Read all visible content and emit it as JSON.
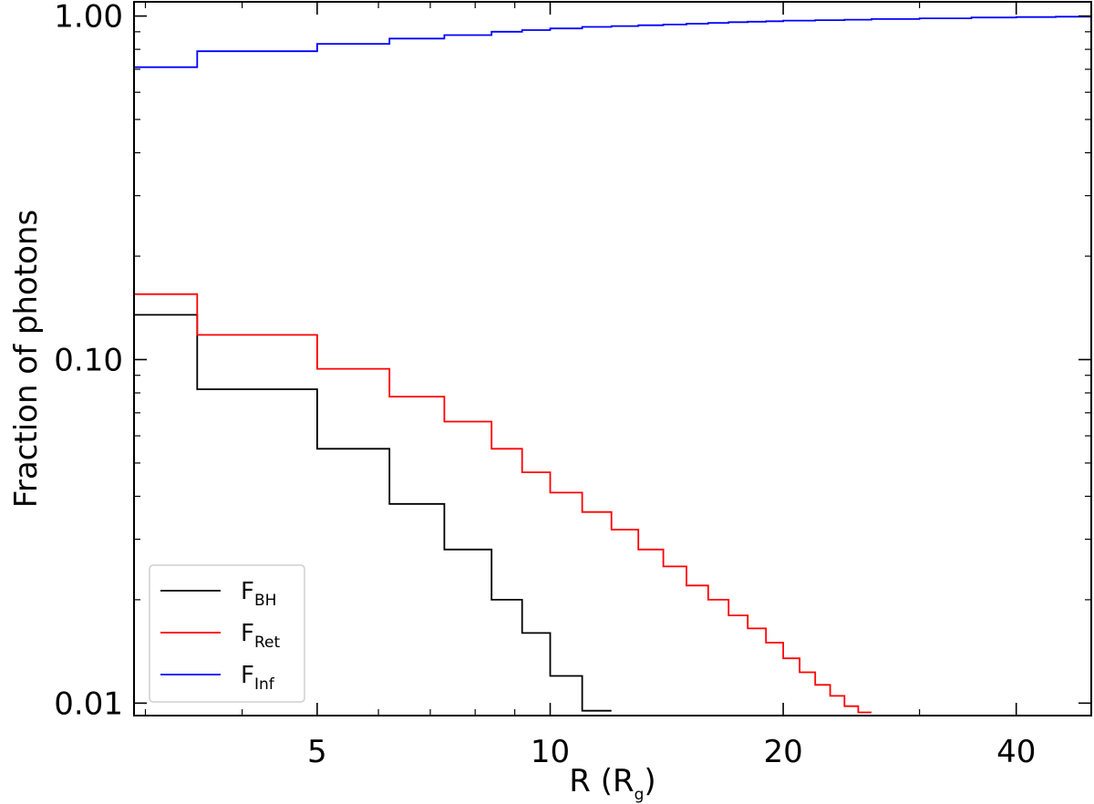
{
  "chart_data": {
    "type": "line",
    "step": true,
    "title": "",
    "xlabel": "R (R",
    "xlabel_sub": "g",
    "xlabel_close": ")",
    "ylabel": "Fraction of photons",
    "xscale": "log",
    "yscale": "log",
    "xlim": [
      2.9,
      50
    ],
    "ylim": [
      0.0092,
      1.1
    ],
    "grid": false,
    "legend_position": "lower-left",
    "x_ticks": [
      {
        "value": 5,
        "label": "5"
      },
      {
        "value": 10,
        "label": "10"
      },
      {
        "value": 20,
        "label": "20"
      },
      {
        "value": 40,
        "label": "40"
      }
    ],
    "y_ticks": [
      {
        "value": 0.01,
        "label": "0.01"
      },
      {
        "value": 0.1,
        "label": "0.10"
      },
      {
        "value": 1.0,
        "label": "1.00"
      }
    ],
    "series": [
      {
        "name": "F",
        "name_sub": "BH",
        "color": "#000000",
        "edges": [
          2.9,
          3.5,
          5.0,
          6.2,
          7.3,
          8.4,
          9.2,
          10.0,
          11.0,
          12.0
        ],
        "values": [
          0.135,
          0.082,
          0.055,
          0.038,
          0.028,
          0.02,
          0.016,
          0.012,
          0.0095
        ]
      },
      {
        "name": "F",
        "name_sub": "Ret",
        "color": "#ff0000",
        "edges": [
          2.9,
          3.5,
          5.0,
          6.2,
          7.3,
          8.4,
          9.2,
          10.0,
          11.0,
          12.0,
          13.0,
          14.0,
          15.0,
          16.0,
          17.0,
          18.0,
          19.0,
          20.0,
          21.0,
          22.0,
          23.0,
          24.0,
          25.0,
          26.0
        ],
        "values": [
          0.155,
          0.118,
          0.094,
          0.078,
          0.066,
          0.055,
          0.047,
          0.041,
          0.036,
          0.032,
          0.028,
          0.025,
          0.022,
          0.02,
          0.018,
          0.0165,
          0.015,
          0.0135,
          0.0123,
          0.0113,
          0.0105,
          0.0098,
          0.0094
        ]
      },
      {
        "name": "F",
        "name_sub": "Inf",
        "color": "#0000ff",
        "edges": [
          2.9,
          3.5,
          5.0,
          6.2,
          7.3,
          8.4,
          9.2,
          10.0,
          11.0,
          12.0,
          13.0,
          14.0,
          15.0,
          16.0,
          17.0,
          18.0,
          19.0,
          20.0,
          22.0,
          24.0,
          26.0,
          30.0,
          35.0,
          40.0,
          45.0,
          50.0
        ],
        "values": [
          0.71,
          0.79,
          0.83,
          0.86,
          0.88,
          0.9,
          0.91,
          0.92,
          0.93,
          0.935,
          0.94,
          0.945,
          0.95,
          0.955,
          0.96,
          0.963,
          0.966,
          0.97,
          0.973,
          0.976,
          0.98,
          0.985,
          0.99,
          0.993,
          0.996
        ]
      }
    ]
  }
}
